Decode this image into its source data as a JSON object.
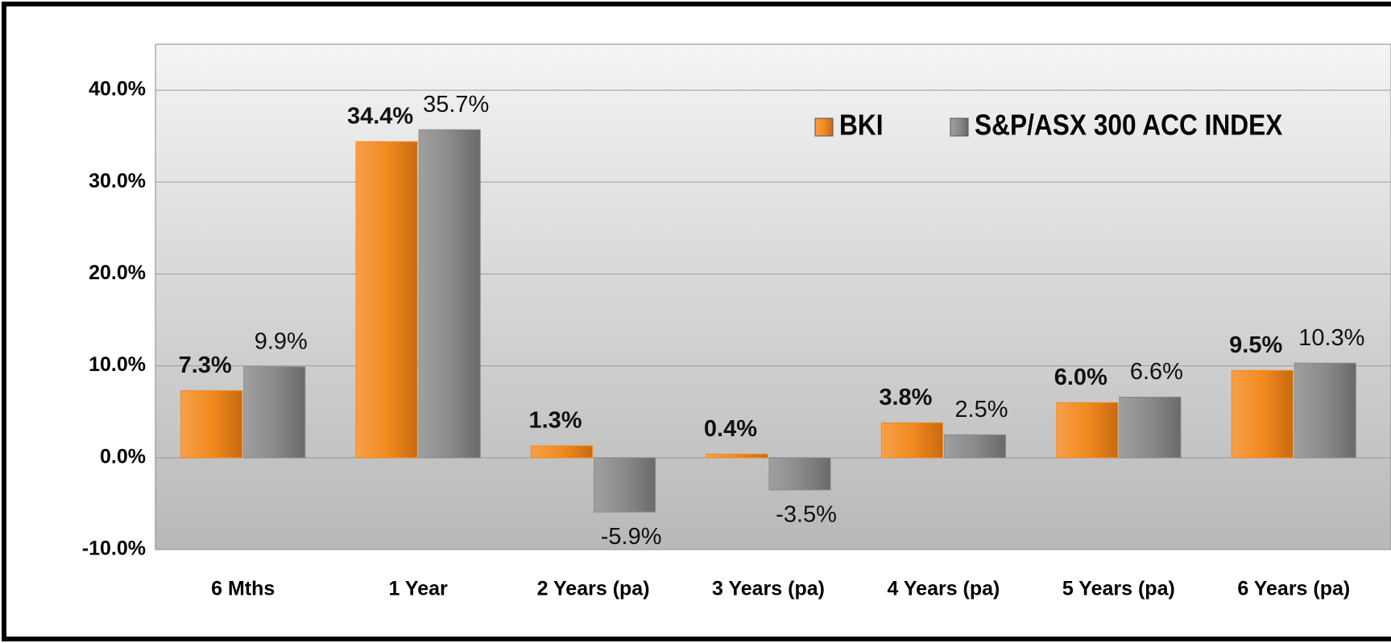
{
  "chart_data": {
    "type": "bar",
    "categories": [
      "6 Mths",
      "1 Year",
      "2 Years (pa)",
      "3 Years (pa)",
      "4 Years (pa)",
      "5 Years (pa)",
      "6 Years (pa)"
    ],
    "series": [
      {
        "name": "BKI",
        "color": "#f28a20",
        "values": [
          7.3,
          34.4,
          1.3,
          0.4,
          3.8,
          6.0,
          9.5
        ],
        "value_labels": [
          "7.3%",
          "34.4%",
          "1.3%",
          "0.4%",
          "3.8%",
          "6.0%",
          "9.5%"
        ]
      },
      {
        "name": "S&P/ASX 300 ACC INDEX",
        "color": "#8a8a8a",
        "values": [
          9.9,
          35.7,
          -5.9,
          -3.5,
          2.5,
          6.6,
          10.3
        ],
        "value_labels": [
          "9.9%",
          "35.7%",
          "-5.9%",
          "-3.5%",
          "2.5%",
          "6.6%",
          "10.3%"
        ]
      }
    ],
    "ylim": [
      -10,
      45
    ],
    "yticks": [
      {
        "value": -10,
        "label": "-10.0%"
      },
      {
        "value": 0,
        "label": "0.0%"
      },
      {
        "value": 10,
        "label": "10.0%"
      },
      {
        "value": 20,
        "label": "20.0%"
      },
      {
        "value": 30,
        "label": "30.0%"
      },
      {
        "value": 40,
        "label": "40.0%"
      }
    ],
    "grid": true,
    "legend": "top-right"
  }
}
